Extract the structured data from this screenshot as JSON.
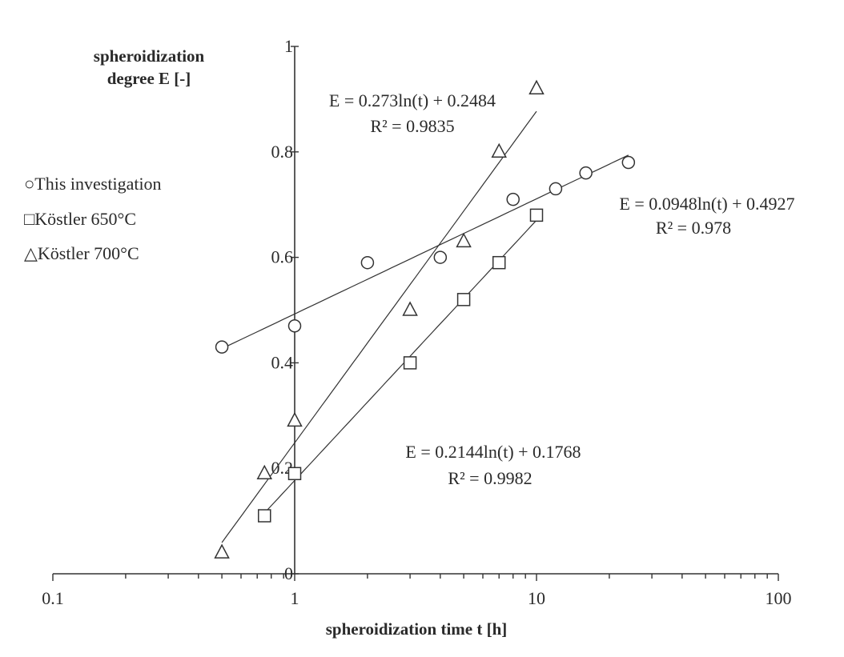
{
  "chart_data": {
    "type": "scatter",
    "xscale": "log",
    "xlim": [
      0.1,
      100
    ],
    "ylim": [
      0,
      1
    ],
    "xlabel": "spheroidization time t [h]",
    "ylabel_line1": "spheroidization",
    "ylabel_line2": "degree E [-]",
    "x_ticks": [
      {
        "value": 0.1,
        "label": "0.1"
      },
      {
        "value": 1,
        "label": "1"
      },
      {
        "value": 10,
        "label": "10"
      },
      {
        "value": 100,
        "label": "100"
      }
    ],
    "y_ticks": [
      {
        "value": 0,
        "label": "0"
      },
      {
        "value": 0.2,
        "label": "0.2"
      },
      {
        "value": 0.4,
        "label": "0.4"
      },
      {
        "value": 0.6,
        "label": "0.6"
      },
      {
        "value": 0.8,
        "label": "0.8"
      },
      {
        "value": 1,
        "label": "1"
      }
    ],
    "legend_position": "left",
    "series": [
      {
        "name": "This investigation",
        "marker": "circle",
        "legend_symbol": "○",
        "points": [
          [
            0.5,
            0.43
          ],
          [
            1,
            0.47
          ],
          [
            2,
            0.59
          ],
          [
            4,
            0.6
          ],
          [
            8,
            0.71
          ],
          [
            12,
            0.73
          ],
          [
            16,
            0.76
          ],
          [
            24,
            0.78
          ]
        ],
        "fit": {
          "a": 0.0948,
          "b": 0.4927,
          "x_range": [
            0.5,
            24
          ]
        },
        "equation": "E = 0.0948ln(t) + 0.4927",
        "r2": "R² = 0.978"
      },
      {
        "name": "Köstler 650°C",
        "marker": "square",
        "legend_symbol": "□",
        "points": [
          [
            0.75,
            0.11
          ],
          [
            1,
            0.19
          ],
          [
            3,
            0.4
          ],
          [
            5,
            0.52
          ],
          [
            7,
            0.59
          ],
          [
            10,
            0.68
          ]
        ],
        "fit": {
          "a": 0.2144,
          "b": 0.1768,
          "x_range": [
            0.75,
            10
          ]
        },
        "equation": "E = 0.2144ln(t) + 0.1768",
        "r2": "R² = 0.9982"
      },
      {
        "name": "Köstler 700°C",
        "marker": "triangle",
        "legend_symbol": "△",
        "points": [
          [
            0.5,
            0.04
          ],
          [
            0.75,
            0.19
          ],
          [
            1,
            0.29
          ],
          [
            3,
            0.5
          ],
          [
            5,
            0.63
          ],
          [
            7,
            0.8
          ],
          [
            10,
            0.92
          ]
        ],
        "fit": {
          "a": 0.273,
          "b": 0.2484,
          "x_range": [
            0.5,
            10
          ]
        },
        "equation": "E = 0.273ln(t) + 0.2484",
        "r2": "R² = 0.9835"
      }
    ]
  }
}
